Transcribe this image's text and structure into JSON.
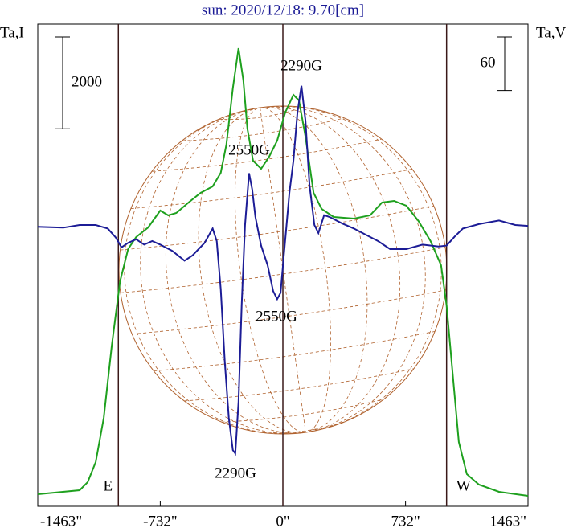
{
  "chart_data": {
    "type": "line",
    "title": "sun: 2020/12/18: 9.70[cm]",
    "y_label": "Ta,I",
    "y2_label": "Ta,V",
    "xlim": [
      -1463,
      1463
    ],
    "xticks": [
      {
        "value": -1463,
        "label": "-1463\""
      },
      {
        "value": -732,
        "label": "-732\""
      },
      {
        "value": 0,
        "label": "0\""
      },
      {
        "value": 732,
        "label": "732\""
      },
      {
        "value": 1463,
        "label": "1463\""
      }
    ],
    "ylim": [
      0,
      10500
    ],
    "y2lim": [
      -310,
      230
    ],
    "limbs": [
      {
        "label": "E",
        "x": -982
      },
      {
        "label": "W",
        "x": 977
      }
    ],
    "scale_bars": [
      {
        "value": 2000,
        "axis": "y"
      },
      {
        "value": 60,
        "axis": "y2"
      }
    ],
    "annotations": [
      "2290G",
      "2550G",
      "2550G",
      "2290G"
    ],
    "series": [
      {
        "color": "#1ea01e",
        "axis": "y",
        "x": [
          -1463,
          -1213,
          -1165,
          -1117,
          -1069,
          -1021,
          -972,
          -924,
          -876,
          -804,
          -732,
          -684,
          -636,
          -563,
          -491,
          -419,
          -371,
          -337,
          -299,
          -265,
          -236,
          -212,
          -178,
          -130,
          -82,
          -34,
          14,
          63,
          96,
          135,
          183,
          231,
          303,
          424,
          520,
          592,
          664,
          737,
          809,
          881,
          944,
          977,
          1011,
          1050,
          1098,
          1170,
          1290,
          1463
        ],
        "values": [
          262,
          350,
          525,
          962,
          1925,
          3500,
          4900,
          5600,
          5862,
          6072,
          6440,
          6335,
          6387,
          6615,
          6825,
          6965,
          7262,
          7875,
          9100,
          9975,
          9275,
          8225,
          7525,
          7350,
          7612,
          7962,
          8575,
          8960,
          8837,
          8050,
          6825,
          6475,
          6300,
          6265,
          6335,
          6615,
          6650,
          6545,
          6212,
          5775,
          5250,
          4375,
          2975,
          1400,
          700,
          472,
          315,
          227
        ]
      },
      {
        "color": "#1c1c96",
        "axis": "y2",
        "x": [
          -1463,
          -1310,
          -1213,
          -1117,
          -1045,
          -997,
          -963,
          -924,
          -876,
          -828,
          -780,
          -732,
          -660,
          -587,
          -539,
          -467,
          -419,
          -395,
          -371,
          -347,
          -323,
          -299,
          -284,
          -265,
          -246,
          -226,
          -202,
          -183,
          -164,
          -130,
          -91,
          -58,
          -34,
          -14,
          5,
          39,
          63,
          87,
          111,
          135,
          159,
          188,
          212,
          246,
          279,
          351,
          424,
          496,
          568,
          640,
          737,
          833,
          929,
          977,
          1025,
          1074,
          1170,
          1290,
          1387,
          1463
        ],
        "values": [
          3,
          2,
          5,
          5,
          1,
          -9,
          -20,
          -15,
          -11,
          -17,
          -13,
          -17,
          -24,
          -35,
          -29,
          -15,
          1,
          -13,
          -67,
          -148,
          -211,
          -247,
          -251,
          -193,
          -85,
          5,
          63,
          45,
          14,
          -18,
          -40,
          -69,
          -78,
          -71,
          -31,
          41,
          77,
          131,
          161,
          122,
          50,
          5,
          -4,
          16,
          14,
          7,
          1,
          -6,
          -13,
          -22,
          -22,
          -17,
          -19,
          -18,
          -8,
          1,
          6,
          10,
          5,
          4
        ]
      }
    ]
  }
}
